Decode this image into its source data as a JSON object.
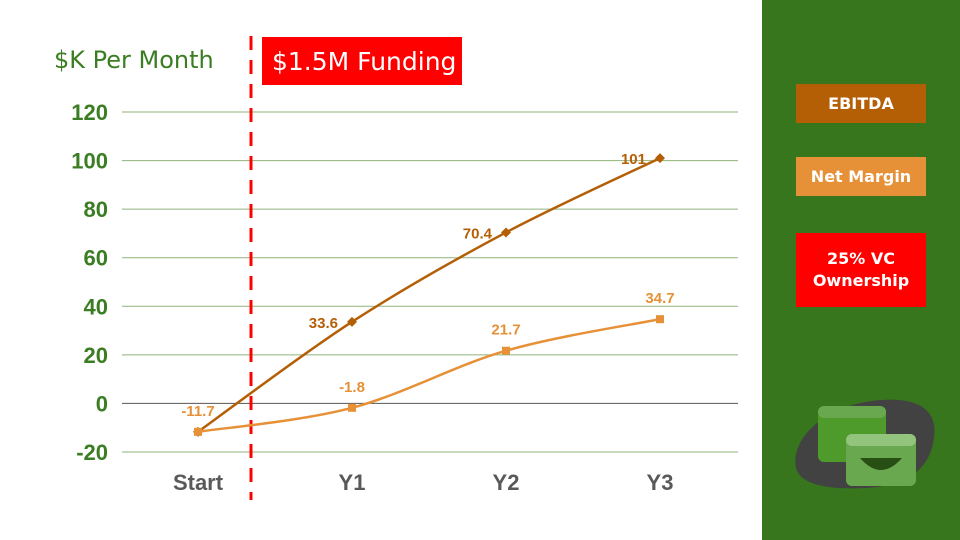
{
  "y_axis_title": "$K Per Month",
  "funding_label": "$1.5M Funding",
  "sidebar": {
    "legend": [
      {
        "label": "EBITDA",
        "color": "#b45f06"
      },
      {
        "label": "Net Margin",
        "color": "#e69138"
      },
      {
        "label": "25% VC Ownership",
        "color": "#ff0000"
      }
    ],
    "logo_icon": "wallet-cards-icon"
  },
  "chart_data": {
    "type": "line",
    "categories": [
      "Start",
      "Y1",
      "Y2",
      "Y3"
    ],
    "ylim": [
      -20,
      120
    ],
    "yticks": [
      120,
      100,
      80,
      60,
      40,
      20,
      0,
      -20
    ],
    "grid": true,
    "series": [
      {
        "values": [
          -11.7,
          33.6,
          70.4,
          101
        ],
        "labels": [
          "",
          "33.6",
          "70.4",
          "101"
        ],
        "color": "#b45f06",
        "marker": "diamond"
      },
      {
        "values": [
          -11.7,
          -1.8,
          21.7,
          34.7
        ],
        "labels": [
          "-11.7",
          "-1.8",
          "21.7",
          "34.7"
        ],
        "color": "#e69138",
        "marker": "square"
      }
    ],
    "annotation": {
      "type": "vertical-dashed-line",
      "between": [
        "Start",
        "Y1"
      ],
      "color": "#ff0000"
    }
  }
}
